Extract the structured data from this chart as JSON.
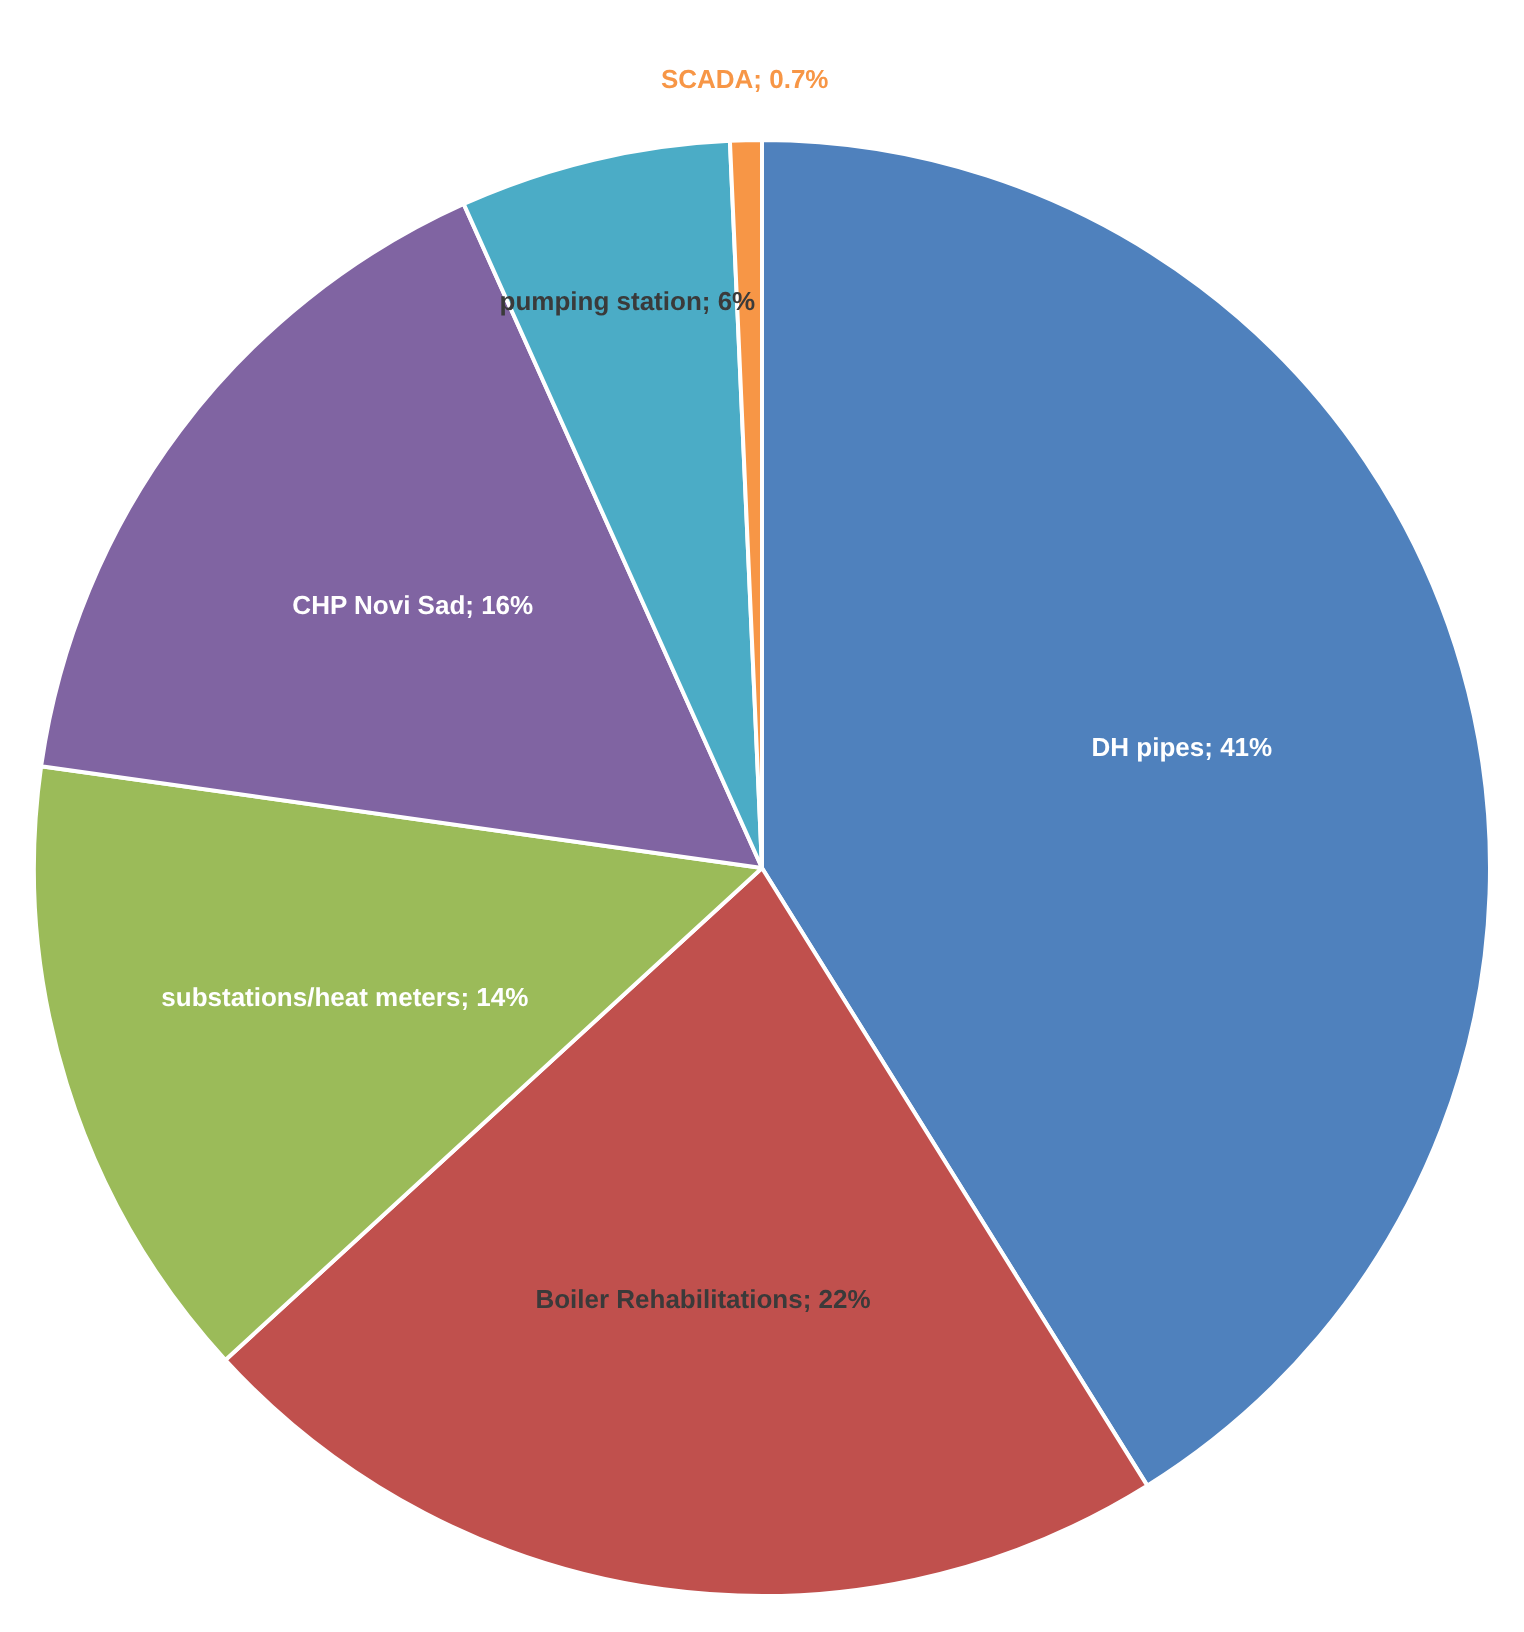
{
  "chart_data": {
    "type": "pie",
    "categories": [
      "DH pipes",
      "Boiler Rehabilitations",
      "substations/heat meters",
      "CHP Novi Sad",
      "pumping station",
      "SCADA"
    ],
    "values": [
      41,
      22,
      14,
      16,
      6,
      0.7
    ],
    "value_labels": [
      "41%",
      "22%",
      "14%",
      "16%",
      "6%",
      "0.7%"
    ],
    "colors": [
      "#4f81bd",
      "#c0504d",
      "#9bbb59",
      "#8064a2",
      "#4bacc6",
      "#f79646"
    ],
    "legend": false
  }
}
